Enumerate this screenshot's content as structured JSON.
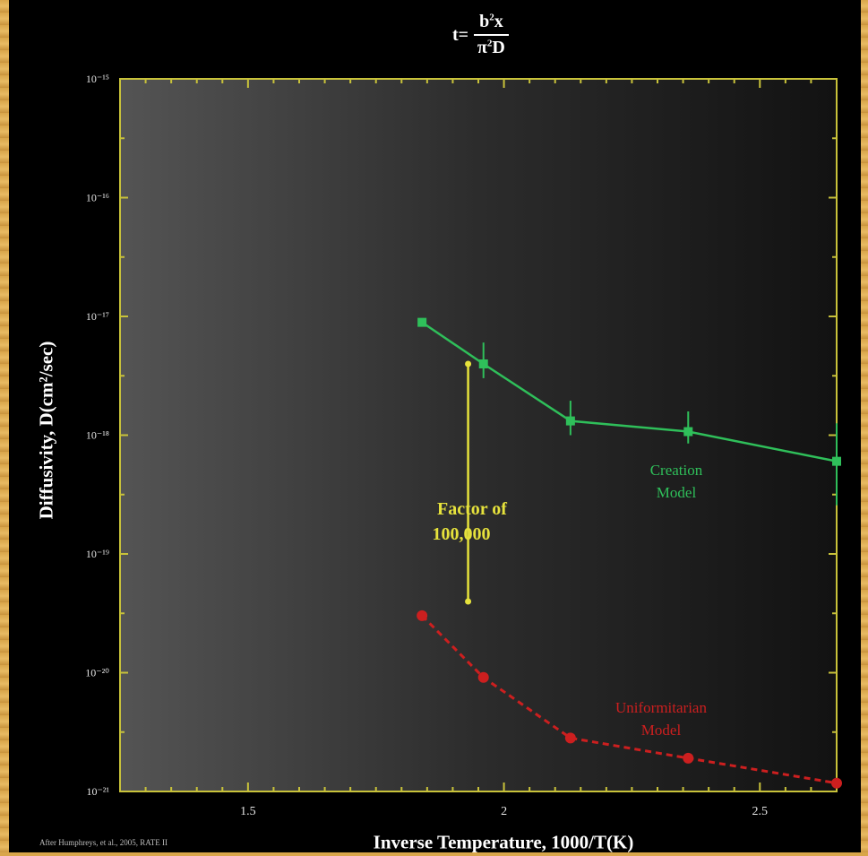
{
  "formula": {
    "lhs": "t=",
    "numerator": "b",
    "numerator_sup": "2",
    "numerator_tail": "x",
    "denominator": "π",
    "denominator_sup": "2",
    "denominator_tail": "D"
  },
  "credit": "After Humphreys, et al., 2005, RATE II",
  "annotation": {
    "factor_line1": "Factor of",
    "factor_line2": "100,000"
  },
  "colors": {
    "frame": "#d9a64a",
    "axes": "#c8c23a",
    "creation": "#2fbf5a",
    "uniformitarian": "#cc1f1f",
    "annotation": "#e6e23c"
  },
  "chart_data": {
    "type": "line",
    "title": "",
    "xlabel": "Inverse Temperature, 1000/T(K)",
    "ylabel": "Diffusivity, D(cm²/sec)",
    "xlim": [
      1.25,
      2.65
    ],
    "ylim": [
      -21,
      -15
    ],
    "yscale": "log",
    "xticks": [
      1.5,
      2,
      2.5
    ],
    "xtick_labels": [
      "1.5",
      "2",
      "2.5"
    ],
    "yticks": [
      -21,
      -20,
      -19,
      -18,
      -17,
      -16,
      -15
    ],
    "ytick_labels": [
      "10⁻²¹",
      "10⁻²⁰",
      "10⁻¹⁹",
      "10⁻¹⁸",
      "10⁻¹⁷",
      "10⁻¹⁶",
      "10⁻¹⁵"
    ],
    "grid": false,
    "series": [
      {
        "name": "Creation Model",
        "label_line1": "Creation",
        "label_line2": "Model",
        "color": "#2fbf5a",
        "style": "solid",
        "marker": "square",
        "x": [
          1.84,
          1.96,
          2.13,
          2.36,
          2.65
        ],
        "y": [
          -17.05,
          -17.4,
          -17.88,
          -17.97,
          -18.22
        ],
        "err_hi": [
          0,
          0.18,
          0.17,
          0.17,
          0.32
        ],
        "err_lo": [
          0,
          0.12,
          0.12,
          0.1,
          0.37
        ]
      },
      {
        "name": "Uniformitarian Model",
        "label_line1": "Uniformitarian",
        "label_line2": "Model",
        "color": "#cc1f1f",
        "style": "dashed",
        "marker": "circle",
        "x": [
          1.84,
          1.96,
          2.13,
          2.36,
          2.65
        ],
        "y": [
          -19.52,
          -20.04,
          -20.55,
          -20.72,
          -20.93
        ]
      }
    ],
    "arrow": {
      "x": 1.93,
      "y_from": -17.4,
      "y_to": -19.4
    }
  }
}
